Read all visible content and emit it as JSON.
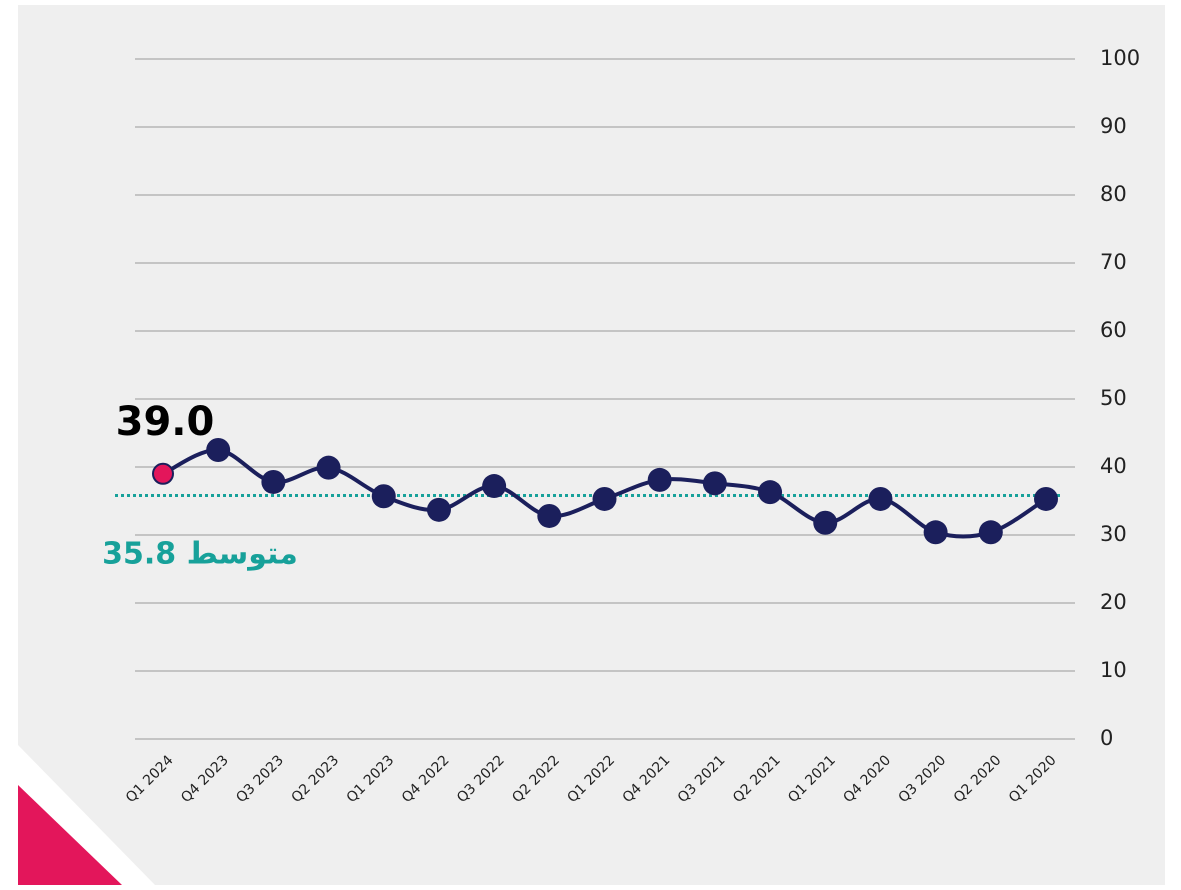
{
  "chart_data": {
    "type": "line",
    "categories": [
      "Q1 2024",
      "Q4 2023",
      "Q3 2023",
      "Q2 2023",
      "Q1 2023",
      "Q4 2022",
      "Q3 2022",
      "Q2 2022",
      "Q1 2022",
      "Q4 2021",
      "Q3 2021",
      "Q2 2021",
      "Q1 2021",
      "Q4 2020",
      "Q3 2020",
      "Q2 2020",
      "Q1 2020"
    ],
    "series": [
      {
        "color": "#1b1f5c",
        "highlight_color": "#e3165b",
        "values": [
          39.0,
          42.5,
          37.8,
          39.9,
          35.7,
          33.7,
          37.2,
          32.8,
          35.3,
          38.1,
          37.6,
          36.3,
          31.8,
          35.3,
          30.4,
          30.4,
          35.3
        ],
        "value_labels": [
          "39.0",
          null,
          null,
          null,
          null,
          null,
          null,
          null,
          null,
          null,
          null,
          null,
          null,
          null,
          null,
          null,
          null
        ]
      }
    ],
    "average": {
      "value": 35.8,
      "label": "متوسط 35.8",
      "color": "#17a19a"
    },
    "ylim": [
      0,
      100
    ],
    "yticks": [
      0,
      10,
      20,
      30,
      40,
      50,
      60,
      70,
      80,
      90,
      100
    ],
    "grid": true
  }
}
